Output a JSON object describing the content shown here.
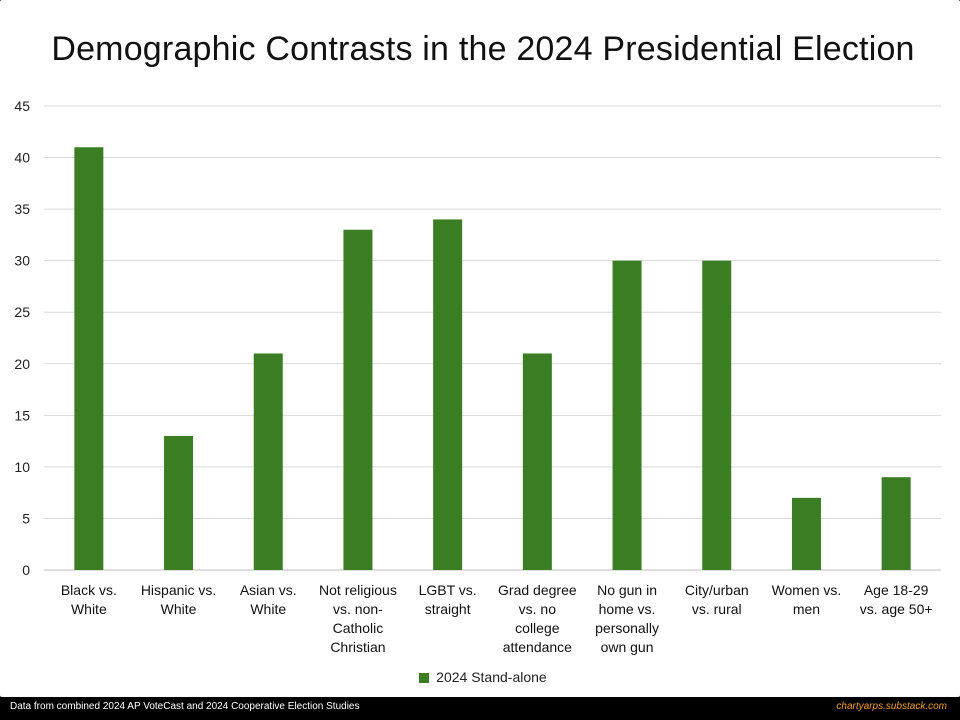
{
  "chart_data": {
    "type": "bar",
    "title": "Demographic Contrasts in the 2024 Presidential Election",
    "categories": [
      [
        "Black vs.",
        "White"
      ],
      [
        "Hispanic vs.",
        "White"
      ],
      [
        "Asian vs.",
        "White"
      ],
      [
        "Not religious",
        "vs. non-",
        "Catholic",
        "Christian"
      ],
      [
        "LGBT vs.",
        "straight"
      ],
      [
        "Grad degree",
        "vs. no",
        "college",
        "attendance"
      ],
      [
        "No gun in",
        "home vs.",
        "personally",
        "own gun"
      ],
      [
        "City/urban",
        "vs. rural"
      ],
      [
        "Women vs.",
        "men"
      ],
      [
        "Age 18-29",
        "vs. age 50+"
      ]
    ],
    "series": [
      {
        "name": "2024 Stand-alone",
        "color": "#3b7d23",
        "values": [
          41,
          13,
          21,
          33,
          34,
          21,
          30,
          30,
          7,
          9
        ]
      }
    ],
    "ylim": [
      0,
      45
    ],
    "yticks": [
      0,
      5,
      10,
      15,
      20,
      25,
      30,
      35,
      40,
      45
    ],
    "grid": true,
    "legend": "bottom-center",
    "xlabel": "",
    "ylabel": ""
  },
  "footer": {
    "source": "Data from combined 2024 AP VoteCast and 2024 Cooperative Election Studies",
    "credit": "chartyarps.substack.com"
  },
  "colors": {
    "bar": "#3b7d23",
    "grid": "#d9d9d9",
    "axis": "#bfbfbf",
    "credit": "#f0a020"
  }
}
